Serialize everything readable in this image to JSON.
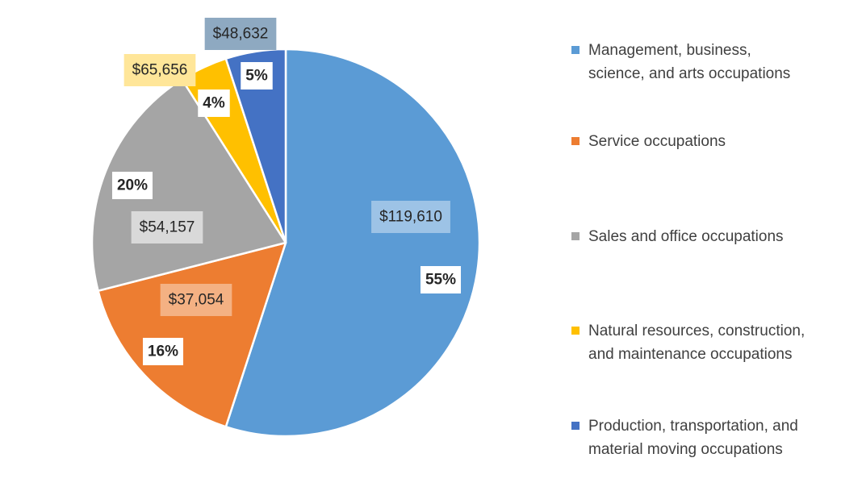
{
  "chart_data": {
    "type": "pie",
    "title": "",
    "start_angle_deg": 0,
    "direction": "clockwise",
    "slices": [
      {
        "label": "Management, business, science, and arts occupations",
        "legend_lines": [
          "Management, business,",
          "science, and arts occupations"
        ],
        "percent": 55,
        "percent_label": "55%",
        "value_label": "$119,610",
        "color": "#5B9BD5",
        "value_box_color": "#9DC3E6"
      },
      {
        "label": "Service occupations",
        "legend_lines": [
          "Service occupations"
        ],
        "percent": 16,
        "percent_label": "16%",
        "value_label": "$37,054",
        "color": "#ED7D31",
        "value_box_color": "#F4B183"
      },
      {
        "label": "Sales and office occupations",
        "legend_lines": [
          "Sales and office occupations"
        ],
        "percent": 20,
        "percent_label": "20%",
        "value_label": "$54,157",
        "color": "#A5A5A5",
        "value_box_color": "#D9D9D9"
      },
      {
        "label": "Natural resources, construction, and maintenance occupations",
        "legend_lines": [
          "Natural resources, construction,",
          "and maintenance occupations"
        ],
        "percent": 4,
        "percent_label": "4%",
        "value_label": "$65,656",
        "color": "#FFC000",
        "value_box_color": "#FFE699"
      },
      {
        "label": "Production, transportation, and material moving occupations",
        "legend_lines": [
          "Production, transportation, and",
          "material moving occupations"
        ],
        "percent": 5,
        "percent_label": "5%",
        "value_label": "$48,632",
        "color": "#4472C4",
        "value_box_color": "#8EA9C1"
      }
    ],
    "legend_position": "right"
  }
}
